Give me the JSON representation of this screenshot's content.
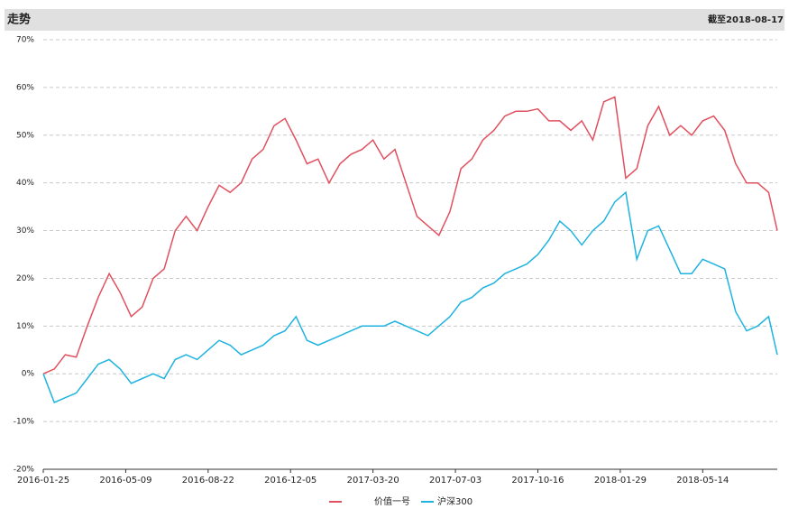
{
  "chart_data": {
    "type": "line",
    "title": "走势",
    "subtitle": "截至2018-08-17",
    "x": [
      "2016-01-25",
      "2016-02-08",
      "2016-02-22",
      "2016-03-07",
      "2016-03-21",
      "2016-04-04",
      "2016-04-18",
      "2016-05-02",
      "2016-05-16",
      "2016-05-30",
      "2016-06-13",
      "2016-06-27",
      "2016-07-11",
      "2016-07-25",
      "2016-08-08",
      "2016-08-22",
      "2016-09-05",
      "2016-09-19",
      "2016-10-03",
      "2016-10-17",
      "2016-10-31",
      "2016-11-14",
      "2016-11-28",
      "2016-12-12",
      "2016-12-26",
      "2017-01-09",
      "2017-01-23",
      "2017-02-06",
      "2017-02-20",
      "2017-03-06",
      "2017-03-20",
      "2017-04-03",
      "2017-04-17",
      "2017-05-01",
      "2017-05-15",
      "2017-05-29",
      "2017-06-12",
      "2017-06-26",
      "2017-07-10",
      "2017-07-24",
      "2017-08-07",
      "2017-08-21",
      "2017-09-04",
      "2017-09-18",
      "2017-10-02",
      "2017-10-16",
      "2017-10-30",
      "2017-11-13",
      "2017-11-27",
      "2017-12-11",
      "2017-12-25",
      "2018-01-08",
      "2018-01-22",
      "2018-02-05",
      "2018-02-19",
      "2018-03-05",
      "2018-03-19",
      "2018-04-02",
      "2018-04-16",
      "2018-04-30",
      "2018-05-14",
      "2018-05-28",
      "2018-06-11",
      "2018-06-25",
      "2018-07-09",
      "2018-07-23",
      "2018-08-06",
      "2018-08-17"
    ],
    "series": [
      {
        "name": "价值一号",
        "color": "#e0505e",
        "values": [
          0,
          1,
          4,
          3.5,
          10,
          16,
          21,
          17,
          12,
          14,
          20,
          22,
          30,
          33,
          30,
          35,
          39.5,
          38,
          40,
          45,
          47,
          52,
          53.5,
          49,
          44,
          45,
          40,
          44,
          46,
          47,
          49,
          45,
          47,
          40,
          33,
          31,
          29,
          34,
          43,
          45,
          49,
          51,
          54,
          55,
          55,
          55.5,
          53,
          53,
          51,
          53,
          49,
          57,
          58,
          41,
          43,
          52,
          56,
          50,
          52,
          50,
          53,
          54,
          51,
          44,
          40,
          40,
          38,
          30
        ]
      },
      {
        "name": "沪深300",
        "color": "#1fb3e0",
        "values": [
          0,
          -6,
          -5,
          -4,
          -1,
          2,
          3,
          1,
          -2,
          -1,
          0,
          -1,
          3,
          4,
          3,
          5,
          7,
          6,
          4,
          5,
          6,
          8,
          9,
          12,
          7,
          6,
          7,
          8,
          9,
          10,
          10,
          10,
          11,
          10,
          9,
          8,
          10,
          12,
          15,
          16,
          18,
          19,
          21,
          22,
          23,
          25,
          28,
          32,
          30,
          27,
          30,
          32,
          36,
          38,
          24,
          30,
          31,
          26,
          21,
          21,
          24,
          23,
          22,
          13,
          9,
          10,
          12,
          4
        ]
      }
    ],
    "xlim": [
      "2016-01-25",
      "2018-08-17"
    ],
    "xticks": [
      "2016-01-25",
      "2016-05-09",
      "2016-08-22",
      "2016-12-05",
      "2017-03-20",
      "2017-07-03",
      "2017-10-16",
      "2018-01-29",
      "2018-05-14"
    ],
    "ylim": [
      -20,
      70
    ],
    "yticks": [
      {
        "value": -20,
        "label": "-20%"
      },
      {
        "value": -10,
        "label": "-10%"
      },
      {
        "value": 0,
        "label": "0%"
      },
      {
        "value": 10,
        "label": "10%"
      },
      {
        "value": 20,
        "label": "20%"
      },
      {
        "value": 30,
        "label": "30%"
      },
      {
        "value": 40,
        "label": "40%"
      },
      {
        "value": 50,
        "label": "50%"
      },
      {
        "value": 60,
        "label": "60%"
      },
      {
        "value": 70,
        "label": "70%"
      }
    ],
    "grid": true
  }
}
